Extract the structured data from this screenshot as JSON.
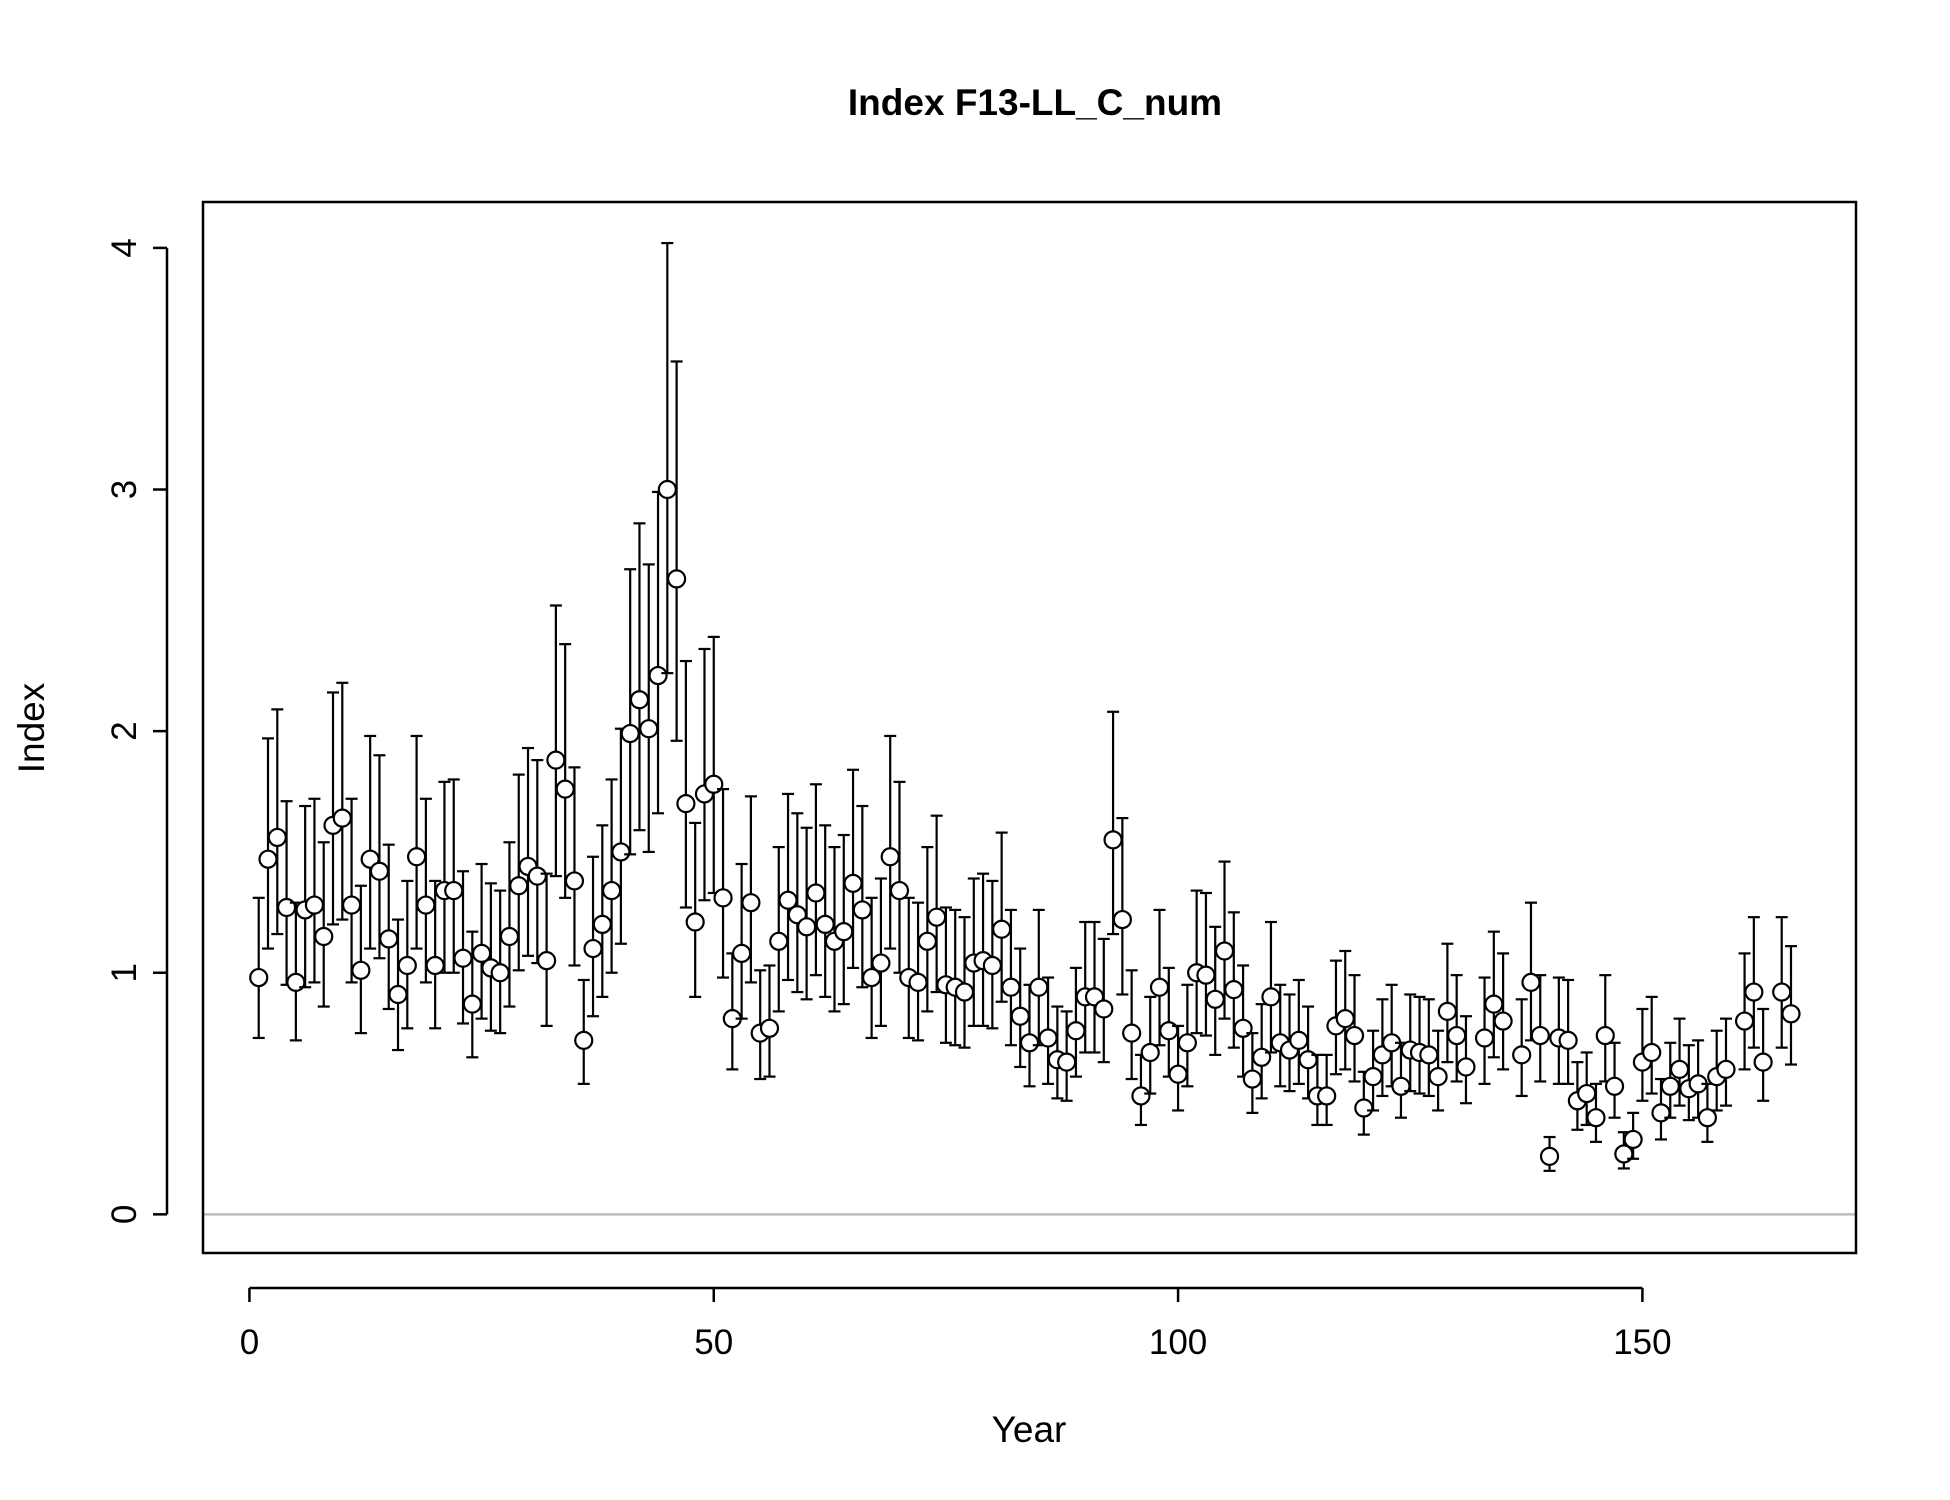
{
  "chart_data": {
    "type": "scatter",
    "title": "Index F13-LL_C_num",
    "xlabel": "Year",
    "ylabel": "Index",
    "xlim": [
      -5,
      173
    ],
    "ylim": [
      -0.16,
      4.19
    ],
    "xticks": [
      0,
      50,
      100,
      150
    ],
    "yticks": [
      0,
      1,
      2,
      3,
      4
    ],
    "grid": false,
    "legend": "none",
    "reference_line": {
      "y": 0,
      "color": "#bebebe"
    },
    "colors": {
      "points_fill": "#ffffff",
      "points_stroke": "#000000",
      "error_bars": "#000000",
      "frame": "#000000"
    },
    "series": [
      {
        "points": [
          {
            "x": 1,
            "y": 0.98,
            "lo": 0.73,
            "hi": 1.31
          },
          {
            "x": 2,
            "y": 1.47,
            "lo": 1.1,
            "hi": 1.97
          },
          {
            "x": 3,
            "y": 1.56,
            "lo": 1.16,
            "hi": 2.09
          },
          {
            "x": 4,
            "y": 1.27,
            "lo": 0.95,
            "hi": 1.71
          },
          {
            "x": 5,
            "y": 0.96,
            "lo": 0.72,
            "hi": 1.29
          },
          {
            "x": 6,
            "y": 1.26,
            "lo": 0.94,
            "hi": 1.69
          },
          {
            "x": 7,
            "y": 1.28,
            "lo": 0.96,
            "hi": 1.72
          },
          {
            "x": 8,
            "y": 1.15,
            "lo": 0.86,
            "hi": 1.54
          },
          {
            "x": 9,
            "y": 1.61,
            "lo": 1.2,
            "hi": 2.16
          },
          {
            "x": 10,
            "y": 1.64,
            "lo": 1.22,
            "hi": 2.2
          },
          {
            "x": 11,
            "y": 1.28,
            "lo": 0.96,
            "hi": 1.72
          },
          {
            "x": 12,
            "y": 1.01,
            "lo": 0.75,
            "hi": 1.36
          },
          {
            "x": 13,
            "y": 1.47,
            "lo": 1.1,
            "hi": 1.98
          },
          {
            "x": 14,
            "y": 1.42,
            "lo": 1.06,
            "hi": 1.9
          },
          {
            "x": 15,
            "y": 1.14,
            "lo": 0.85,
            "hi": 1.53
          },
          {
            "x": 16,
            "y": 0.91,
            "lo": 0.68,
            "hi": 1.22
          },
          {
            "x": 17,
            "y": 1.03,
            "lo": 0.77,
            "hi": 1.38
          },
          {
            "x": 18,
            "y": 1.48,
            "lo": 1.1,
            "hi": 1.98
          },
          {
            "x": 19,
            "y": 1.28,
            "lo": 0.96,
            "hi": 1.72
          },
          {
            "x": 20,
            "y": 1.03,
            "lo": 0.77,
            "hi": 1.38
          },
          {
            "x": 21,
            "y": 1.34,
            "lo": 1.0,
            "hi": 1.79
          },
          {
            "x": 22,
            "y": 1.34,
            "lo": 1.0,
            "hi": 1.8
          },
          {
            "x": 23,
            "y": 1.06,
            "lo": 0.79,
            "hi": 1.42
          },
          {
            "x": 24,
            "y": 0.87,
            "lo": 0.65,
            "hi": 1.17
          },
          {
            "x": 25,
            "y": 1.08,
            "lo": 0.81,
            "hi": 1.45
          },
          {
            "x": 26,
            "y": 1.02,
            "lo": 0.76,
            "hi": 1.37
          },
          {
            "x": 27,
            "y": 1.0,
            "lo": 0.75,
            "hi": 1.34
          },
          {
            "x": 28,
            "y": 1.15,
            "lo": 0.86,
            "hi": 1.54
          },
          {
            "x": 29,
            "y": 1.36,
            "lo": 1.01,
            "hi": 1.82
          },
          {
            "x": 30,
            "y": 1.44,
            "lo": 1.07,
            "hi": 1.93
          },
          {
            "x": 31,
            "y": 1.4,
            "lo": 1.04,
            "hi": 1.88
          },
          {
            "x": 32,
            "y": 1.05,
            "lo": 0.78,
            "hi": 1.41
          },
          {
            "x": 33,
            "y": 1.88,
            "lo": 1.4,
            "hi": 2.52
          },
          {
            "x": 34,
            "y": 1.76,
            "lo": 1.31,
            "hi": 2.36
          },
          {
            "x": 35,
            "y": 1.38,
            "lo": 1.03,
            "hi": 1.85
          },
          {
            "x": 36,
            "y": 0.72,
            "lo": 0.54,
            "hi": 0.97
          },
          {
            "x": 37,
            "y": 1.1,
            "lo": 0.82,
            "hi": 1.48
          },
          {
            "x": 38,
            "y": 1.2,
            "lo": 0.9,
            "hi": 1.61
          },
          {
            "x": 39,
            "y": 1.34,
            "lo": 1.0,
            "hi": 1.8
          },
          {
            "x": 40,
            "y": 1.5,
            "lo": 1.12,
            "hi": 2.01
          },
          {
            "x": 41,
            "y": 1.99,
            "lo": 1.49,
            "hi": 2.67
          },
          {
            "x": 42,
            "y": 2.13,
            "lo": 1.59,
            "hi": 2.86
          },
          {
            "x": 43,
            "y": 2.01,
            "lo": 1.5,
            "hi": 2.69
          },
          {
            "x": 44,
            "y": 2.23,
            "lo": 1.66,
            "hi": 2.99
          },
          {
            "x": 45,
            "y": 3.0,
            "lo": 2.24,
            "hi": 4.02
          },
          {
            "x": 46,
            "y": 2.63,
            "lo": 1.96,
            "hi": 3.53
          },
          {
            "x": 47,
            "y": 1.7,
            "lo": 1.27,
            "hi": 2.29
          },
          {
            "x": 48,
            "y": 1.21,
            "lo": 0.9,
            "hi": 1.62
          },
          {
            "x": 49,
            "y": 1.74,
            "lo": 1.3,
            "hi": 2.34
          },
          {
            "x": 50,
            "y": 1.78,
            "lo": 1.33,
            "hi": 2.39
          },
          {
            "x": 51,
            "y": 1.31,
            "lo": 0.98,
            "hi": 1.76
          },
          {
            "x": 52,
            "y": 0.81,
            "lo": 0.6,
            "hi": 1.08
          },
          {
            "x": 53,
            "y": 1.08,
            "lo": 0.81,
            "hi": 1.45
          },
          {
            "x": 54,
            "y": 1.29,
            "lo": 0.96,
            "hi": 1.73
          },
          {
            "x": 55,
            "y": 0.75,
            "lo": 0.56,
            "hi": 1.01
          },
          {
            "x": 56,
            "y": 0.77,
            "lo": 0.57,
            "hi": 1.03
          },
          {
            "x": 57,
            "y": 1.13,
            "lo": 0.84,
            "hi": 1.52
          },
          {
            "x": 58,
            "y": 1.3,
            "lo": 0.97,
            "hi": 1.74
          },
          {
            "x": 59,
            "y": 1.24,
            "lo": 0.92,
            "hi": 1.66
          },
          {
            "x": 60,
            "y": 1.19,
            "lo": 0.89,
            "hi": 1.6
          },
          {
            "x": 61,
            "y": 1.33,
            "lo": 0.99,
            "hi": 1.78
          },
          {
            "x": 62,
            "y": 1.2,
            "lo": 0.9,
            "hi": 1.61
          },
          {
            "x": 63,
            "y": 1.13,
            "lo": 0.84,
            "hi": 1.52
          },
          {
            "x": 64,
            "y": 1.17,
            "lo": 0.87,
            "hi": 1.57
          },
          {
            "x": 65,
            "y": 1.37,
            "lo": 1.02,
            "hi": 1.84
          },
          {
            "x": 66,
            "y": 1.26,
            "lo": 0.94,
            "hi": 1.69
          },
          {
            "x": 67,
            "y": 0.98,
            "lo": 0.73,
            "hi": 1.31
          },
          {
            "x": 68,
            "y": 1.04,
            "lo": 0.78,
            "hi": 1.39
          },
          {
            "x": 69,
            "y": 1.48,
            "lo": 1.1,
            "hi": 1.98
          },
          {
            "x": 70,
            "y": 1.34,
            "lo": 1.0,
            "hi": 1.79
          },
          {
            "x": 71,
            "y": 0.98,
            "lo": 0.73,
            "hi": 1.31
          },
          {
            "x": 72,
            "y": 0.96,
            "lo": 0.72,
            "hi": 1.29
          },
          {
            "x": 73,
            "y": 1.13,
            "lo": 0.84,
            "hi": 1.52
          },
          {
            "x": 74,
            "y": 1.23,
            "lo": 0.92,
            "hi": 1.65
          },
          {
            "x": 75,
            "y": 0.95,
            "lo": 0.71,
            "hi": 1.27
          },
          {
            "x": 76,
            "y": 0.94,
            "lo": 0.7,
            "hi": 1.26
          },
          {
            "x": 77,
            "y": 0.92,
            "lo": 0.69,
            "hi": 1.23
          },
          {
            "x": 78,
            "y": 1.04,
            "lo": 0.78,
            "hi": 1.39
          },
          {
            "x": 79,
            "y": 1.05,
            "lo": 0.78,
            "hi": 1.41
          },
          {
            "x": 80,
            "y": 1.03,
            "lo": 0.77,
            "hi": 1.38
          },
          {
            "x": 81,
            "y": 1.18,
            "lo": 0.88,
            "hi": 1.58
          },
          {
            "x": 82,
            "y": 0.94,
            "lo": 0.7,
            "hi": 1.26
          },
          {
            "x": 83,
            "y": 0.82,
            "lo": 0.61,
            "hi": 1.1
          },
          {
            "x": 84,
            "y": 0.71,
            "lo": 0.53,
            "hi": 0.95
          },
          {
            "x": 85,
            "y": 0.94,
            "lo": 0.7,
            "hi": 1.26
          },
          {
            "x": 86,
            "y": 0.73,
            "lo": 0.54,
            "hi": 0.98
          },
          {
            "x": 87,
            "y": 0.64,
            "lo": 0.48,
            "hi": 0.86
          },
          {
            "x": 88,
            "y": 0.63,
            "lo": 0.47,
            "hi": 0.84
          },
          {
            "x": 89,
            "y": 0.76,
            "lo": 0.57,
            "hi": 1.02
          },
          {
            "x": 90,
            "y": 0.9,
            "lo": 0.67,
            "hi": 1.21
          },
          {
            "x": 91,
            "y": 0.9,
            "lo": 0.67,
            "hi": 1.21
          },
          {
            "x": 92,
            "y": 0.85,
            "lo": 0.63,
            "hi": 1.14
          },
          {
            "x": 93,
            "y": 1.55,
            "lo": 1.16,
            "hi": 2.08
          },
          {
            "x": 94,
            "y": 1.22,
            "lo": 0.91,
            "hi": 1.64
          },
          {
            "x": 95,
            "y": 0.75,
            "lo": 0.56,
            "hi": 1.01
          },
          {
            "x": 96,
            "y": 0.49,
            "lo": 0.37,
            "hi": 0.66
          },
          {
            "x": 97,
            "y": 0.67,
            "lo": 0.5,
            "hi": 0.9
          },
          {
            "x": 98,
            "y": 0.94,
            "lo": 0.7,
            "hi": 1.26
          },
          {
            "x": 99,
            "y": 0.76,
            "lo": 0.57,
            "hi": 1.02
          },
          {
            "x": 100,
            "y": 0.58,
            "lo": 0.43,
            "hi": 0.78
          },
          {
            "x": 101,
            "y": 0.71,
            "lo": 0.53,
            "hi": 0.95
          },
          {
            "x": 102,
            "y": 1.0,
            "lo": 0.75,
            "hi": 1.34
          },
          {
            "x": 103,
            "y": 0.99,
            "lo": 0.74,
            "hi": 1.33
          },
          {
            "x": 104,
            "y": 0.89,
            "lo": 0.66,
            "hi": 1.19
          },
          {
            "x": 105,
            "y": 1.09,
            "lo": 0.81,
            "hi": 1.46
          },
          {
            "x": 106,
            "y": 0.93,
            "lo": 0.69,
            "hi": 1.25
          },
          {
            "x": 107,
            "y": 0.77,
            "lo": 0.57,
            "hi": 1.03
          },
          {
            "x": 108,
            "y": 0.56,
            "lo": 0.42,
            "hi": 0.75
          },
          {
            "x": 109,
            "y": 0.65,
            "lo": 0.48,
            "hi": 0.87
          },
          {
            "x": 110,
            "y": 0.9,
            "lo": 0.67,
            "hi": 1.21
          },
          {
            "x": 111,
            "y": 0.71,
            "lo": 0.53,
            "hi": 0.95
          },
          {
            "x": 112,
            "y": 0.68,
            "lo": 0.51,
            "hi": 0.91
          },
          {
            "x": 113,
            "y": 0.72,
            "lo": 0.54,
            "hi": 0.97
          },
          {
            "x": 114,
            "y": 0.64,
            "lo": 0.48,
            "hi": 0.86
          },
          {
            "x": 115,
            "y": 0.49,
            "lo": 0.37,
            "hi": 0.66
          },
          {
            "x": 116,
            "y": 0.49,
            "lo": 0.37,
            "hi": 0.66
          },
          {
            "x": 117,
            "y": 0.78,
            "lo": 0.58,
            "hi": 1.05
          },
          {
            "x": 118,
            "y": 0.81,
            "lo": 0.6,
            "hi": 1.09
          },
          {
            "x": 119,
            "y": 0.74,
            "lo": 0.55,
            "hi": 0.99
          },
          {
            "x": 120,
            "y": 0.44,
            "lo": 0.33,
            "hi": 0.59
          },
          {
            "x": 121,
            "y": 0.57,
            "lo": 0.43,
            "hi": 0.76
          },
          {
            "x": 122,
            "y": 0.66,
            "lo": 0.49,
            "hi": 0.89
          },
          {
            "x": 123,
            "y": 0.71,
            "lo": 0.53,
            "hi": 0.95
          },
          {
            "x": 124,
            "y": 0.53,
            "lo": 0.4,
            "hi": 0.71
          },
          {
            "x": 125,
            "y": 0.68,
            "lo": 0.51,
            "hi": 0.91
          },
          {
            "x": 126,
            "y": 0.67,
            "lo": 0.5,
            "hi": 0.9
          },
          {
            "x": 127,
            "y": 0.66,
            "lo": 0.49,
            "hi": 0.89
          },
          {
            "x": 128,
            "y": 0.57,
            "lo": 0.43,
            "hi": 0.76
          },
          {
            "x": 129,
            "y": 0.84,
            "lo": 0.63,
            "hi": 1.12
          },
          {
            "x": 130,
            "y": 0.74,
            "lo": 0.55,
            "hi": 0.99
          },
          {
            "x": 131,
            "y": 0.61,
            "lo": 0.46,
            "hi": 0.82
          },
          {
            "x": 133,
            "y": 0.73,
            "lo": 0.54,
            "hi": 0.98
          },
          {
            "x": 134,
            "y": 0.87,
            "lo": 0.65,
            "hi": 1.17
          },
          {
            "x": 135,
            "y": 0.8,
            "lo": 0.6,
            "hi": 1.08
          },
          {
            "x": 137,
            "y": 0.66,
            "lo": 0.49,
            "hi": 0.89
          },
          {
            "x": 138,
            "y": 0.96,
            "lo": 0.72,
            "hi": 1.29
          },
          {
            "x": 139,
            "y": 0.74,
            "lo": 0.55,
            "hi": 0.99
          },
          {
            "x": 140,
            "y": 0.24,
            "lo": 0.18,
            "hi": 0.32
          },
          {
            "x": 141,
            "y": 0.73,
            "lo": 0.54,
            "hi": 0.98
          },
          {
            "x": 142,
            "y": 0.72,
            "lo": 0.54,
            "hi": 0.97
          },
          {
            "x": 143,
            "y": 0.47,
            "lo": 0.35,
            "hi": 0.63
          },
          {
            "x": 144,
            "y": 0.5,
            "lo": 0.37,
            "hi": 0.67
          },
          {
            "x": 145,
            "y": 0.4,
            "lo": 0.3,
            "hi": 0.54
          },
          {
            "x": 146,
            "y": 0.74,
            "lo": 0.55,
            "hi": 0.99
          },
          {
            "x": 147,
            "y": 0.53,
            "lo": 0.4,
            "hi": 0.71
          },
          {
            "x": 148,
            "y": 0.25,
            "lo": 0.19,
            "hi": 0.34
          },
          {
            "x": 149,
            "y": 0.31,
            "lo": 0.23,
            "hi": 0.42
          },
          {
            "x": 150,
            "y": 0.63,
            "lo": 0.47,
            "hi": 0.85
          },
          {
            "x": 151,
            "y": 0.67,
            "lo": 0.5,
            "hi": 0.9
          },
          {
            "x": 152,
            "y": 0.42,
            "lo": 0.31,
            "hi": 0.56
          },
          {
            "x": 153,
            "y": 0.53,
            "lo": 0.4,
            "hi": 0.71
          },
          {
            "x": 154,
            "y": 0.6,
            "lo": 0.45,
            "hi": 0.81
          },
          {
            "x": 155,
            "y": 0.52,
            "lo": 0.39,
            "hi": 0.7
          },
          {
            "x": 156,
            "y": 0.54,
            "lo": 0.4,
            "hi": 0.72
          },
          {
            "x": 157,
            "y": 0.4,
            "lo": 0.3,
            "hi": 0.54
          },
          {
            "x": 158,
            "y": 0.57,
            "lo": 0.43,
            "hi": 0.76
          },
          {
            "x": 159,
            "y": 0.6,
            "lo": 0.45,
            "hi": 0.81
          },
          {
            "x": 161,
            "y": 0.8,
            "lo": 0.6,
            "hi": 1.08
          },
          {
            "x": 162,
            "y": 0.92,
            "lo": 0.69,
            "hi": 1.23
          },
          {
            "x": 163,
            "y": 0.63,
            "lo": 0.47,
            "hi": 0.85
          },
          {
            "x": 165,
            "y": 0.92,
            "lo": 0.69,
            "hi": 1.23
          },
          {
            "x": 166,
            "y": 0.83,
            "lo": 0.62,
            "hi": 1.11
          }
        ]
      }
    ]
  }
}
